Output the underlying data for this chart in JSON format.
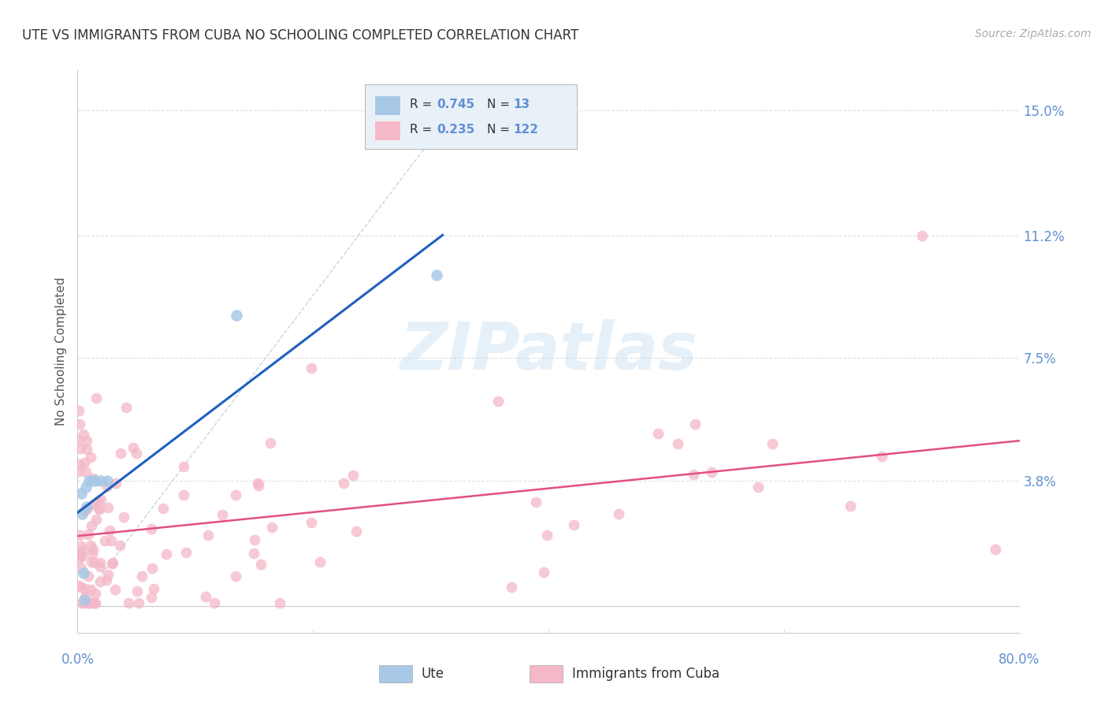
{
  "title": "UTE VS IMMIGRANTS FROM CUBA NO SCHOOLING COMPLETED CORRELATION CHART",
  "source": "Source: ZipAtlas.com",
  "ylabel": "No Schooling Completed",
  "ytick_values": [
    0.0,
    0.038,
    0.075,
    0.112,
    0.15
  ],
  "ytick_labels": [
    "",
    "3.8%",
    "7.5%",
    "11.2%",
    "15.0%"
  ],
  "xmin": 0.0,
  "xmax": 0.8,
  "ymin": -0.008,
  "ymax": 0.162,
  "ute_color": "#a8c8e8",
  "cuba_color": "#f4b8c8",
  "ute_line_color": "#2060c0",
  "cuba_line_color": "#e05080",
  "diagonal_color": "#b8d4e8",
  "R_ute": 0.745,
  "N_ute": 13,
  "R_cuba": 0.235,
  "N_cuba": 122,
  "watermark_text": "ZIPatlas",
  "background_color": "#ffffff",
  "grid_color": "#e0e0e0",
  "ute_legend_color": "#a8c8e8",
  "cuba_legend_color": "#f4b8c8",
  "tick_color": "#6090d0",
  "legend_box_color": "#e8f0f8"
}
